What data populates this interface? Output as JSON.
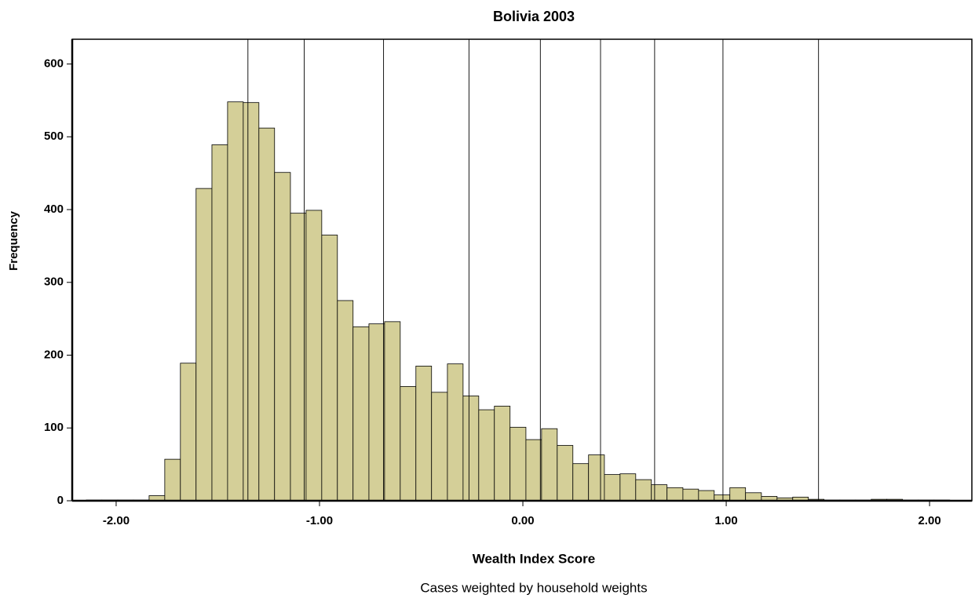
{
  "chart_data": {
    "type": "histogram",
    "title": "Bolivia 2003",
    "x_label": "Wealth Index Score",
    "y_label": "Frequency",
    "footnote": "Cases weighted by household weights",
    "bins": [
      -2.147,
      -2.07,
      -1.992,
      -1.915,
      -1.838,
      -1.761,
      -1.684,
      -1.607,
      -1.529,
      -1.452,
      -1.375,
      -1.298,
      -1.221,
      -1.143,
      -1.066,
      -0.989,
      -0.912,
      -0.835,
      -0.757,
      -0.68,
      -0.603,
      -0.526,
      -0.449,
      -0.371,
      -0.294,
      -0.217,
      -0.14,
      -0.063,
      0.015,
      0.092,
      0.169,
      0.246,
      0.323,
      0.401,
      0.478,
      0.555,
      0.632,
      0.709,
      0.787,
      0.864,
      0.941,
      1.018,
      1.095,
      1.173,
      1.25,
      1.327,
      1.404,
      1.481,
      1.559,
      1.636,
      1.713,
      1.79,
      1.867,
      1.945,
      2.022,
      2.099
    ],
    "values": [
      1,
      1,
      1,
      1,
      7,
      57,
      189,
      429,
      489,
      548,
      547,
      512,
      451,
      395,
      399,
      365,
      275,
      239,
      243,
      246,
      157,
      185,
      149,
      188,
      144,
      125,
      130,
      101,
      84,
      99,
      76,
      51,
      63,
      36,
      37,
      29,
      22,
      18,
      16,
      14,
      8,
      18,
      11,
      6,
      4,
      5,
      2,
      1,
      1,
      1,
      2,
      2,
      1,
      1,
      1
    ],
    "color": "#d4cf98",
    "reference_lines": [
      -1.352,
      -1.075,
      -0.685,
      -0.265,
      0.086,
      0.382,
      0.648,
      0.984,
      1.454
    ],
    "xlim": [
      -2.216,
      2.208
    ],
    "ylim": [
      0,
      634
    ],
    "xticks": [
      {
        "value": -2,
        "label": "-2.00"
      },
      {
        "value": -1,
        "label": "-1.00"
      },
      {
        "value": 0,
        "label": "0.00"
      },
      {
        "value": 1,
        "label": "1.00"
      },
      {
        "value": 2,
        "label": "2.00"
      }
    ],
    "yticks": [
      0,
      100,
      200,
      300,
      400,
      500,
      600
    ]
  }
}
